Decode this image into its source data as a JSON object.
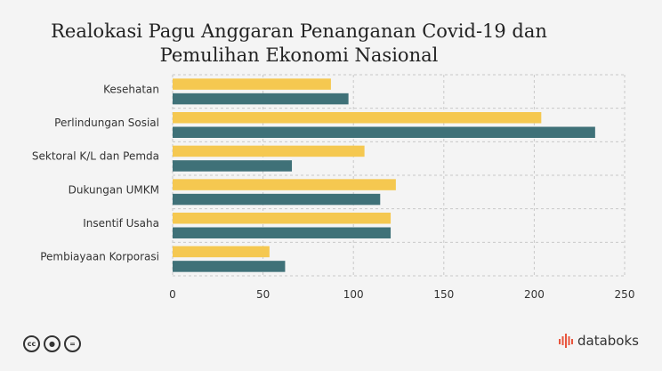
{
  "chart_data": {
    "type": "bar",
    "orientation": "horizontal",
    "title": "Realokasi Pagu Anggaran Penanganan Covid-19 dan Pemulihan Ekonomi Nasional",
    "categories": [
      "Kesehatan",
      "Perlindungan Sosial",
      "Sektoral K/L dan Pemda",
      "Dukungan UMKM",
      "Insentif Usaha",
      "Pembiayaan Korporasi"
    ],
    "series": [
      {
        "color": "#f5c850",
        "values": [
          87.55,
          203.9,
          106.11,
          123.46,
          120.61,
          53.57
        ]
      },
      {
        "color": "#3f7178",
        "values": [
          97.26,
          233.69,
          65.97,
          114.81,
          120.6,
          62.22
        ]
      }
    ],
    "xlim": [
      0,
      250
    ],
    "xticks": [
      "0",
      "50",
      "100",
      "150",
      "200",
      "250"
    ],
    "grid": true,
    "legend": "none"
  },
  "footer": {
    "license_icons": [
      "cc-icon",
      "by-icon",
      "nd-icon"
    ],
    "brand": "databoks",
    "brand_color": "#e8543c"
  }
}
